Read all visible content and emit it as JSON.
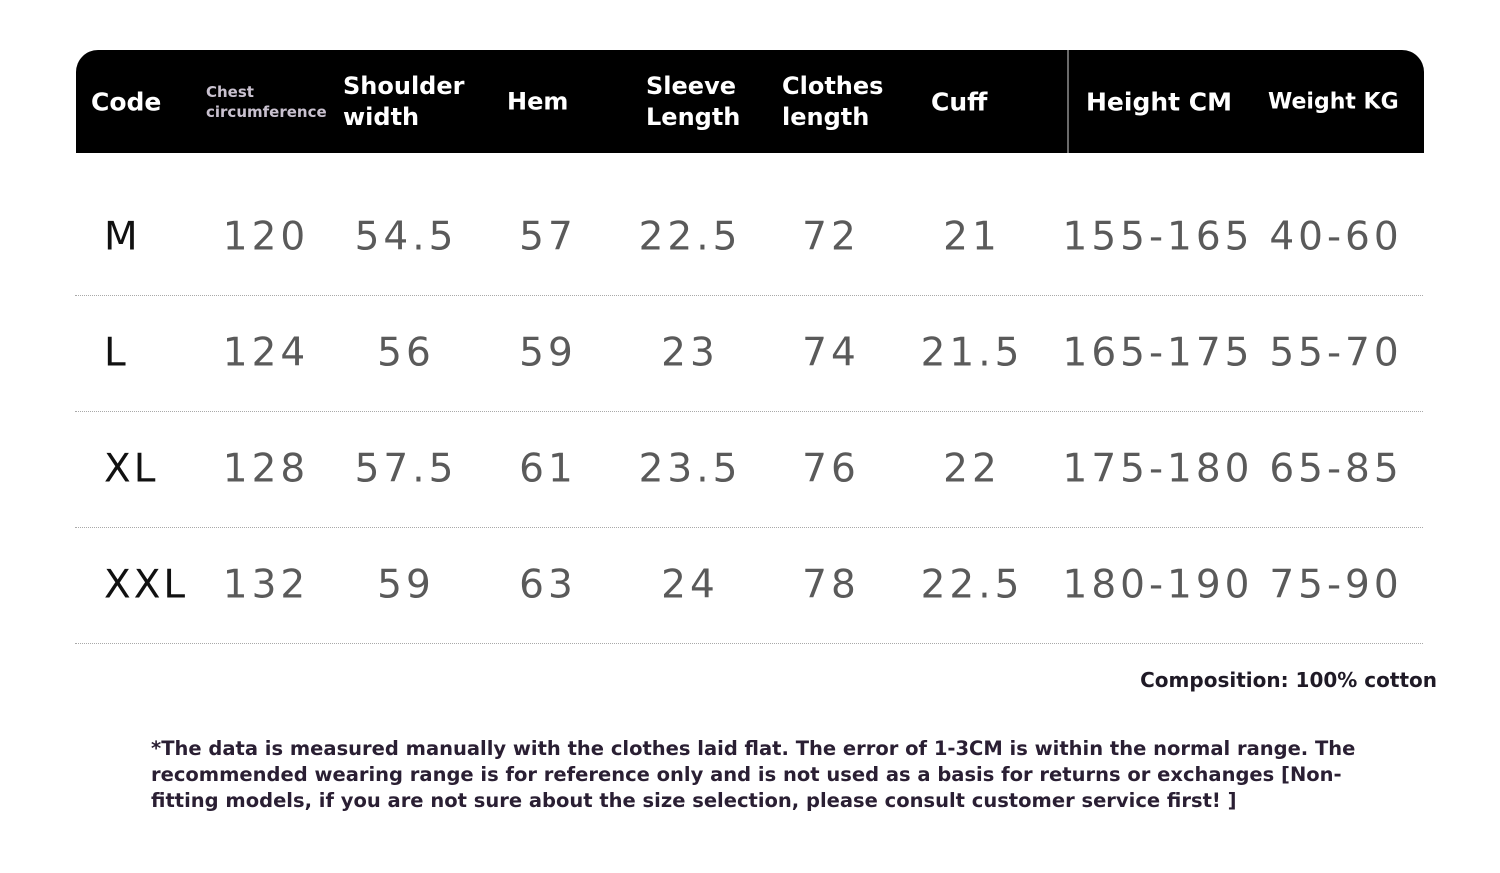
{
  "headers": [
    "Code",
    "Chest circumference",
    "Shoulder width",
    "Hem",
    "Sleeve Length",
    "Clothes length",
    "Cuff",
    "Height CM",
    "Weight KG"
  ],
  "rows": [
    [
      "M",
      "120",
      "54.5",
      "57",
      "22.5",
      "72",
      "21",
      "155-165",
      "40-60"
    ],
    [
      "L",
      "124",
      "56",
      "59",
      "23",
      "74",
      "21.5",
      "165-175",
      "55-70"
    ],
    [
      "XL",
      "128",
      "57.5",
      "61",
      "23.5",
      "76",
      "22",
      "175-180",
      "65-85"
    ],
    [
      "XXL",
      "132",
      "59",
      "63",
      "24",
      "78",
      "22.5",
      "180-190",
      "75-90"
    ]
  ],
  "composition": "Composition: 100% cotton",
  "note": "*The data is measured manually with the clothes laid flat. The error of 1-3CM is within the normal range. The recommended wearing range is for reference only and is not used as a basis for returns or exchanges [Non-fitting models, if you are not sure about the size selection, please consult customer service first! ]"
}
